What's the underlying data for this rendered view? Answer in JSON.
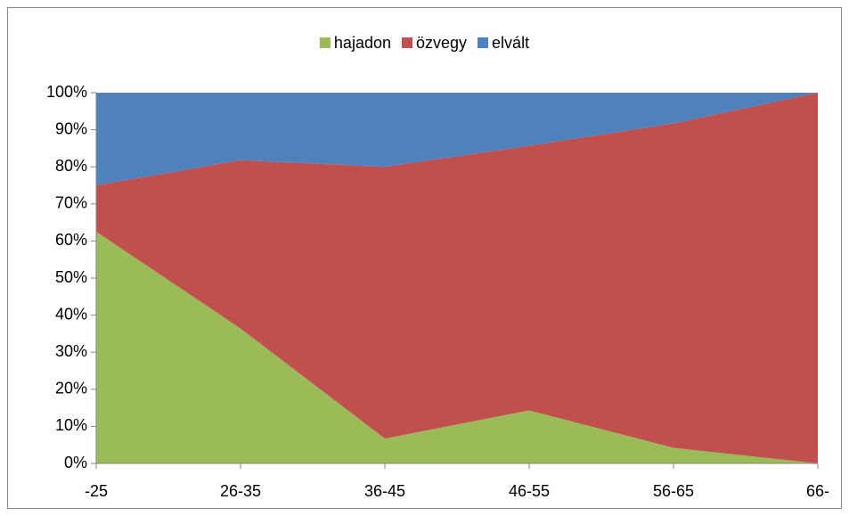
{
  "chart_data": {
    "type": "stacked_area",
    "categories": [
      "-25",
      "26-35",
      "36-45",
      "46-55",
      "56-65",
      "66-"
    ],
    "series": [
      {
        "name": "hajadon",
        "color": "#9bbb59",
        "values": [
          62.5,
          36.4,
          6.7,
          14.3,
          4.2,
          0
        ]
      },
      {
        "name": "özvegy",
        "color": "#c0504d",
        "values": [
          12.5,
          45.4,
          73.3,
          71.4,
          87.5,
          100
        ]
      },
      {
        "name": "elvált",
        "color": "#4f81bd",
        "values": [
          25,
          18.2,
          20,
          14.3,
          8.3,
          0
        ]
      }
    ],
    "ylim": [
      0,
      100
    ],
    "yticks": [
      {
        "value": 0,
        "label": "0%"
      },
      {
        "value": 10,
        "label": "10%"
      },
      {
        "value": 20,
        "label": "20%"
      },
      {
        "value": 30,
        "label": "30%"
      },
      {
        "value": 40,
        "label": "40%"
      },
      {
        "value": 50,
        "label": "50%"
      },
      {
        "value": 60,
        "label": "60%"
      },
      {
        "value": 70,
        "label": "70%"
      },
      {
        "value": 80,
        "label": "80%"
      },
      {
        "value": 90,
        "label": "90%"
      },
      {
        "value": 100,
        "label": "100%"
      }
    ],
    "legend": "top"
  }
}
